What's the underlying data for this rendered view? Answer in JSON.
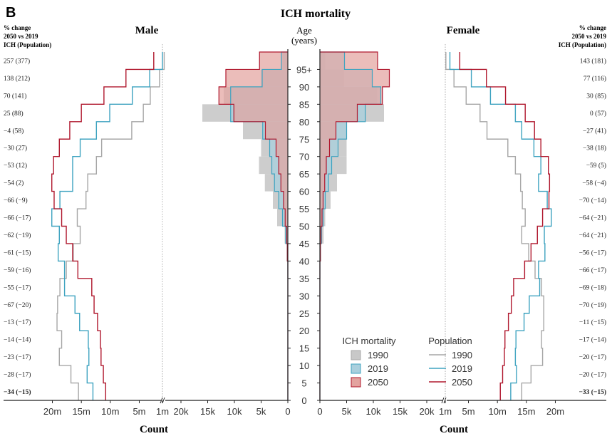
{
  "panel_label": "B",
  "title": "ICH mortality",
  "male_title": "Male",
  "female_title": "Female",
  "age_title_1": "Age",
  "age_title_2": "(years)",
  "pct_header_left": [
    "% change",
    "2050 vs 2019",
    "ICH (Population)"
  ],
  "pct_header_right": [
    "% change",
    "2050 vs 2019",
    "ICH (Population)"
  ],
  "xlabel_left": "Count",
  "xlabel_right": "Count",
  "legend": {
    "mortality_title": "ICH mortality",
    "population_title": "Population",
    "years": [
      "1990",
      "2019",
      "2050"
    ]
  },
  "colors": {
    "1990_fill": "#c8c8c8",
    "2019_fill": "#a9cfdd",
    "2050_fill": "#e3a39f",
    "overlap_fill": "#b08e8e",
    "1990_line": "#a6a6a6",
    "2019_line": "#3ea3c0",
    "2050_line": "#b0182e"
  },
  "chart_data": {
    "type": "bar",
    "orientation": "horizontal population pyramid",
    "age_groups": [
      "0",
      "5",
      "10",
      "15",
      "20",
      "25",
      "30",
      "35",
      "40",
      "45",
      "50",
      "55",
      "60",
      "65",
      "70",
      "75",
      "80",
      "85",
      "90",
      "95+"
    ],
    "axes": {
      "population_ticks": [
        "20m",
        "15m",
        "10m",
        "5m",
        "1m"
      ],
      "count_ticks_left": [
        "20k",
        "15k",
        "10k",
        "5k",
        "0"
      ],
      "count_ticks_right": [
        "0",
        "5k",
        "10k",
        "15k",
        "20k"
      ],
      "age_ticks": [
        "0",
        "5",
        "10",
        "15",
        "20",
        "25",
        "30",
        "35",
        "40",
        "45",
        "50",
        "55",
        "60",
        "65",
        "70",
        "75",
        "80",
        "85",
        "90",
        "95+"
      ]
    },
    "male_pct_change": [
      "−34 (−15)",
      "−28 (−17)",
      "−23 (−17)",
      "−14 (−14)",
      "−13 (−17)",
      "−67 (−20)",
      "−55 (−17)",
      "−59 (−16)",
      "−61 (−15)",
      "−62 (−19)",
      "−66 (−17)",
      "−66 (−9)",
      "−54 (2)",
      "−53 (12)",
      "−30 (27)",
      "−4 (58)",
      "25 (88)",
      "70 (141)",
      "138 (212)",
      "257 (377)"
    ],
    "female_pct_change": [
      "−33 (−15)",
      "−20 (−17)",
      "−20 (−17)",
      "−17 (−14)",
      "−11 (−15)",
      "−70 (−19)",
      "−69 (−18)",
      "−66 (−17)",
      "−56 (−17)",
      "−64 (−21)",
      "−64 (−21)",
      "−70 (−14)",
      "−58 (−4)",
      "−59 (5)",
      "−38 (18)",
      "−27 (41)",
      "0 (57)",
      "30 (85)",
      "77 (116)",
      "143 (181)"
    ],
    "male_deaths": {
      "1990": [
        0,
        0,
        0,
        0,
        0,
        0,
        0,
        100,
        200,
        600,
        2000,
        2800,
        4300,
        5400,
        5000,
        8400,
        16000,
        12000,
        5000,
        1000
      ],
      "2019": [
        0,
        0,
        0,
        0,
        0,
        0,
        0,
        0,
        100,
        400,
        1000,
        1700,
        2500,
        3000,
        3400,
        4700,
        10700,
        10700,
        4800,
        1200
      ],
      "2050": [
        0,
        0,
        0,
        0,
        0,
        0,
        0,
        0,
        100,
        200,
        500,
        800,
        1300,
        1700,
        2200,
        4200,
        10100,
        12900,
        11600,
        5300
      ]
    },
    "female_deaths": {
      "1990": [
        0,
        0,
        0,
        0,
        0,
        0,
        0,
        100,
        200,
        700,
        1000,
        2000,
        3200,
        5000,
        5000,
        5000,
        12000,
        10700,
        4500,
        1000
      ],
      "2019": [
        0,
        0,
        0,
        0,
        0,
        0,
        0,
        0,
        100,
        300,
        600,
        1000,
        1600,
        2200,
        3400,
        5000,
        8500,
        11400,
        9800,
        4600
      ],
      "2050": [
        0,
        0,
        0,
        0,
        0,
        0,
        0,
        0,
        100,
        200,
        400,
        600,
        900,
        1200,
        1800,
        3000,
        7000,
        11700,
        13000,
        10800
      ]
    },
    "male_population_m": {
      "1990": [
        15.5,
        16.8,
        18.8,
        18.4,
        19.2,
        19.1,
        18.7,
        17.6,
        16.4,
        15.2,
        15.7,
        14.2,
        13.9,
        12.4,
        11.5,
        6.3,
        4.3,
        3.1,
        1.5,
        0.7
      ],
      "2019": [
        13.0,
        14.0,
        13.7,
        13.8,
        15.3,
        16.1,
        17.9,
        17.9,
        19.0,
        18.8,
        20.1,
        18.7,
        16.5,
        16.5,
        15.2,
        12.4,
        10.1,
        6.2,
        3.2,
        1.0
      ],
      "2050": [
        10.8,
        11.2,
        11.6,
        11.7,
        12.2,
        12.8,
        13.2,
        15.6,
        16.5,
        17.6,
        18.4,
        19.7,
        20.1,
        19.8,
        18.8,
        17.0,
        15.0,
        11.1,
        7.3,
        2.5
      ]
    },
    "female_population_m": {
      "1990": [
        14.2,
        15.8,
        17.8,
        17.6,
        18.0,
        18.0,
        17.6,
        16.5,
        15.4,
        14.2,
        14.8,
        14.3,
        14.0,
        13.1,
        11.8,
        8.2,
        7.0,
        4.6,
        2.5,
        1.1
      ],
      "2019": [
        12.3,
        13.3,
        13.1,
        13.2,
        14.6,
        15.5,
        17.3,
        17.1,
        18.2,
        18.1,
        19.3,
        18.6,
        17.1,
        17.5,
        16.3,
        14.2,
        13.1,
        8.8,
        5.5,
        1.8
      ],
      "2050": [
        10.5,
        10.9,
        11.2,
        11.3,
        11.9,
        12.4,
        12.8,
        14.7,
        15.8,
        16.9,
        17.8,
        18.9,
        19.0,
        18.8,
        17.5,
        16.4,
        14.8,
        11.4,
        8.1,
        3.5
      ]
    }
  }
}
